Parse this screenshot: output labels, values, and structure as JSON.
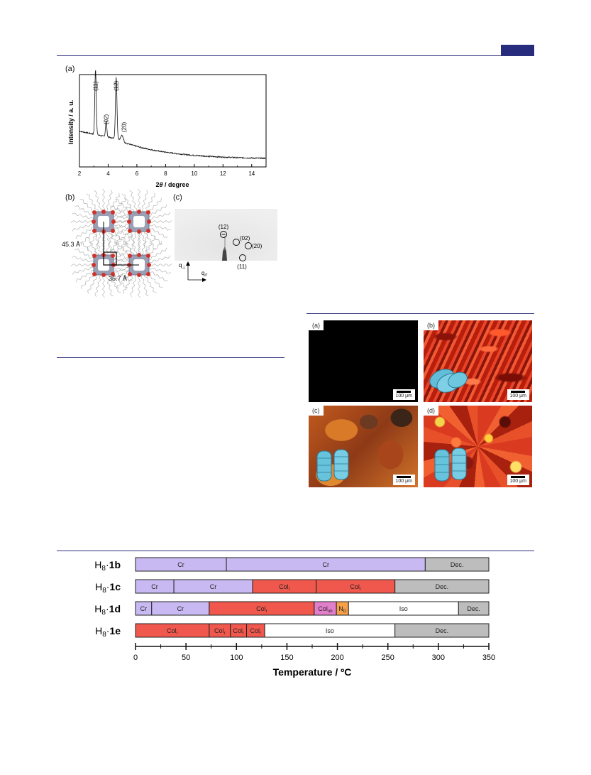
{
  "figure_a": {
    "label": "(a)",
    "ylabel": "Intensity / a. u.",
    "xlabel_prefix": "2",
    "xlabel_theta": "θ",
    "xlabel_suffix": " / degree",
    "peaks": [
      "(11)",
      "(02)",
      "(12)",
      "(20)"
    ],
    "chart_data": {
      "type": "line",
      "xlabel": "2θ / degree",
      "ylabel": "Intensity / a. u.",
      "xlim": [
        2,
        15
      ],
      "xticks": [
        2,
        4,
        6,
        8,
        10,
        12,
        14
      ],
      "peaks": [
        {
          "label": "(11)",
          "x": 3.1
        },
        {
          "label": "(02)",
          "x": 3.85
        },
        {
          "label": "(12)",
          "x": 4.55
        },
        {
          "label": "(20)",
          "x": 4.95
        }
      ]
    }
  },
  "figure_b": {
    "label": "(b)",
    "dim_vertical": "45.3 Å",
    "dim_horizontal": "35.7 Å"
  },
  "figure_c": {
    "label": "(c)",
    "spots": [
      "(12)",
      "(02)",
      "(20)",
      "(11)"
    ],
    "axis_perp": "q",
    "axis_perp_sub": "⊥",
    "axis_par": "q",
    "axis_par_sub": "//"
  },
  "micrographs": [
    {
      "label": "(a)",
      "scale": "100 μm",
      "color": "#000000"
    },
    {
      "label": "(b)",
      "scale": "100 μm",
      "color": "#d42a12"
    },
    {
      "label": "(c)",
      "scale": "100 μm",
      "color": "#c4611c"
    },
    {
      "label": "(d)",
      "scale": "100 μm",
      "color": "#d8391c"
    }
  ],
  "phase_chart": {
    "xlabel": "Temperature / ºC",
    "chart_data": {
      "type": "bar",
      "orientation": "horizontal-stacked",
      "xlim": [
        0,
        350
      ],
      "xticks": [
        0,
        50,
        100,
        150,
        200,
        250,
        300,
        350
      ],
      "xlabel": "Temperature / ºC",
      "rows": [
        {
          "name_prefix": "H",
          "name_sub": "8",
          "name_dot": "·",
          "name_bold": "1b",
          "segments": [
            {
              "label": "Cr",
              "sub": "",
              "start": 0,
              "end": 90,
              "color": "#c9b9f2"
            },
            {
              "label": "Cr",
              "sub": "",
              "start": 90,
              "end": 287,
              "color": "#c9b9f2"
            },
            {
              "label": "Dec.",
              "sub": "",
              "start": 287,
              "end": 350,
              "color": "#bdbdbd"
            }
          ]
        },
        {
          "name_prefix": "H",
          "name_sub": "8",
          "name_dot": "·",
          "name_bold": "1c",
          "segments": [
            {
              "label": "Cr",
              "sub": "",
              "start": 0,
              "end": 38,
              "color": "#c9b9f2"
            },
            {
              "label": "Cr",
              "sub": "",
              "start": 38,
              "end": 116,
              "color": "#c9b9f2"
            },
            {
              "label": "Col",
              "sub": "r",
              "start": 116,
              "end": 179,
              "color": "#f0584d"
            },
            {
              "label": "Col",
              "sub": "r",
              "start": 179,
              "end": 257,
              "color": "#f0584d"
            },
            {
              "label": "Dec.",
              "sub": "",
              "start": 257,
              "end": 350,
              "color": "#bdbdbd"
            }
          ]
        },
        {
          "name_prefix": "H",
          "name_sub": "8",
          "name_dot": "·",
          "name_bold": "1d",
          "segments": [
            {
              "label": "Cr",
              "sub": "",
              "start": 0,
              "end": 16,
              "color": "#c9b9f2"
            },
            {
              "label": "Cr",
              "sub": "",
              "start": 16,
              "end": 73,
              "color": "#c9b9f2"
            },
            {
              "label": "Col",
              "sub": "r",
              "start": 73,
              "end": 177,
              "color": "#f0584d"
            },
            {
              "label": "Col",
              "sub": "ob",
              "start": 177,
              "end": 199,
              "color": "#e27fcb"
            },
            {
              "label": "N",
              "sub": "D",
              "start": 199,
              "end": 211,
              "color": "#f6a04a"
            },
            {
              "label": "Iso",
              "sub": "",
              "start": 211,
              "end": 320,
              "color": "#ffffff"
            },
            {
              "label": "Dec.",
              "sub": "",
              "start": 320,
              "end": 350,
              "color": "#bdbdbd"
            }
          ]
        },
        {
          "name_prefix": "H",
          "name_sub": "8",
          "name_dot": "·",
          "name_bold": "1e",
          "segments": [
            {
              "label": "Col",
              "sub": "r",
              "start": 0,
              "end": 73,
              "color": "#f0584d"
            },
            {
              "label": "Col",
              "sub": "r",
              "start": 73,
              "end": 94,
              "color": "#f0584d"
            },
            {
              "label": "Col",
              "sub": "r",
              "start": 94,
              "end": 110,
              "color": "#f0584d"
            },
            {
              "label": "Col",
              "sub": "r",
              "start": 110,
              "end": 128,
              "color": "#f0584d"
            },
            {
              "label": "Iso",
              "sub": "",
              "start": 128,
              "end": 257,
              "color": "#ffffff"
            },
            {
              "label": "Dec.",
              "sub": "",
              "start": 257,
              "end": 350,
              "color": "#bdbdbd"
            }
          ]
        }
      ]
    }
  }
}
